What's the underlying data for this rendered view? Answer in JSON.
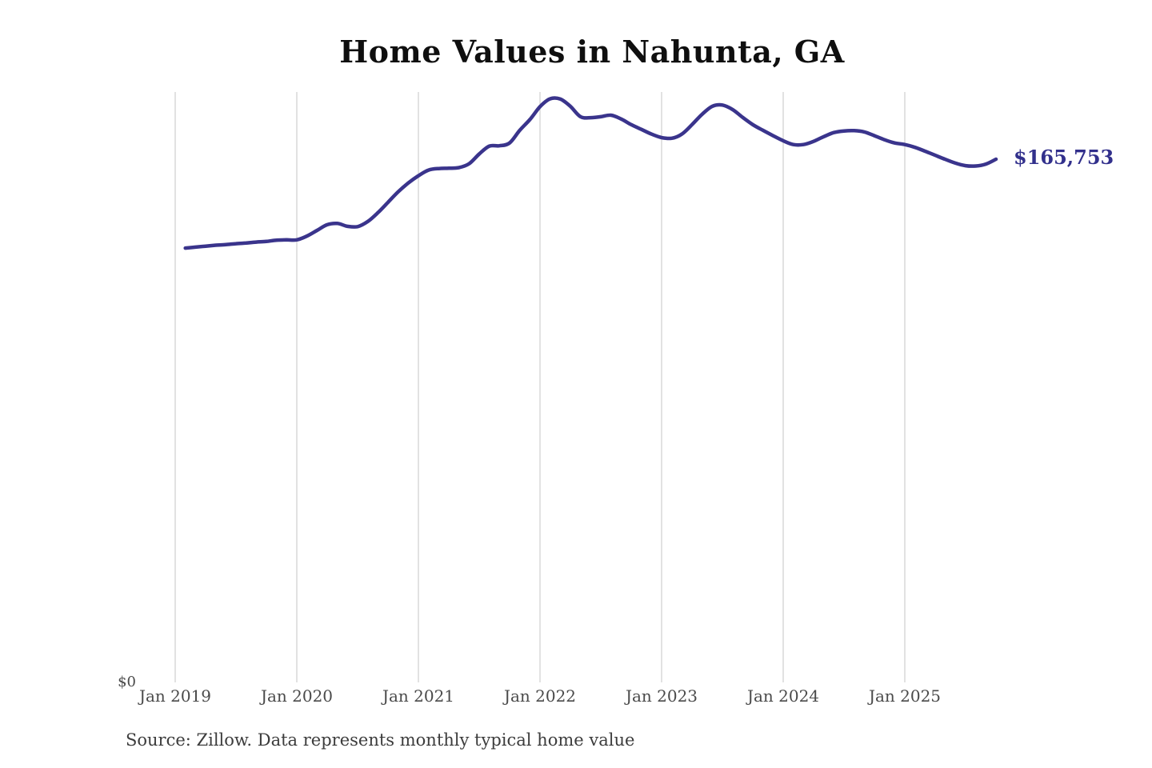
{
  "title": "Home Values in Nahunta, GA",
  "y_axis": {
    "zero_label": "$0"
  },
  "x_axis": {
    "ticks": [
      "Jan 2019",
      "Jan 2020",
      "Jan 2021",
      "Jan 2022",
      "Jan 2023",
      "Jan 2024",
      "Jan 2025"
    ]
  },
  "end_label": "$165,753",
  "source_note": "Source: Zillow. Data represents monthly typical home value",
  "colors": {
    "line": "#3a348c",
    "end_label": "#32308c",
    "grid": "#c6c6c6",
    "axis_text": "#4a4a4a",
    "title_text": "#0f0f0f",
    "source_text": "#3c3c3c",
    "background": "#ffffff"
  },
  "chart_data": {
    "type": "line",
    "title": "Home Values in Nahunta, GA",
    "series_name": "Monthly typical home value",
    "unit": "USD",
    "frequency": "monthly",
    "xlabel": "",
    "ylabel": "",
    "ylim": [
      0,
      200000
    ],
    "grid": "vertical-yearly",
    "legend": "none",
    "final_value": 165753,
    "x": [
      "2019-01",
      "2019-02",
      "2019-03",
      "2019-04",
      "2019-05",
      "2019-06",
      "2019-07",
      "2019-08",
      "2019-09",
      "2019-10",
      "2019-11",
      "2019-12",
      "2020-01",
      "2020-02",
      "2020-03",
      "2020-04",
      "2020-05",
      "2020-06",
      "2020-07",
      "2020-08",
      "2020-09",
      "2020-10",
      "2020-11",
      "2020-12",
      "2021-01",
      "2021-02",
      "2021-03",
      "2021-04",
      "2021-05",
      "2021-06",
      "2021-07",
      "2021-08",
      "2021-09",
      "2021-10",
      "2021-11",
      "2021-12",
      "2022-01",
      "2022-02",
      "2022-03",
      "2022-04",
      "2022-05",
      "2022-06",
      "2022-07",
      "2022-08",
      "2022-09",
      "2022-10",
      "2022-11",
      "2022-12",
      "2023-01",
      "2023-02",
      "2023-03",
      "2023-04",
      "2023-05",
      "2023-06",
      "2023-07",
      "2023-08",
      "2023-09",
      "2023-10",
      "2023-11",
      "2023-12",
      "2024-01",
      "2024-02",
      "2024-03",
      "2024-04",
      "2024-05",
      "2024-06",
      "2024-07",
      "2024-08",
      "2024-09",
      "2024-10",
      "2024-11",
      "2024-12",
      "2025-01",
      "2025-02",
      "2025-03",
      "2025-04",
      "2025-05",
      "2025-06",
      "2025-07",
      "2025-08",
      "2025-09"
    ],
    "values": [
      137600,
      137900,
      138200,
      138500,
      138700,
      139000,
      139200,
      139500,
      139700,
      140100,
      140200,
      140200,
      141400,
      143200,
      145000,
      145400,
      144500,
      144400,
      146000,
      148800,
      152100,
      155400,
      158200,
      160500,
      162300,
      162800,
      162900,
      163100,
      164300,
      167400,
      169900,
      170000,
      170900,
      174900,
      178300,
      182400,
      184900,
      184800,
      182500,
      179200,
      178900,
      179200,
      179700,
      178500,
      176700,
      175200,
      173700,
      172600,
      172400,
      173700,
      176700,
      180000,
      182500,
      182900,
      181500,
      179000,
      176700,
      174900,
      173200,
      171600,
      170400,
      170400,
      171400,
      172900,
      174200,
      174700,
      174800,
      174400,
      173200,
      171900,
      170900,
      170400,
      169500,
      168300,
      167000,
      165700,
      164500,
      163700,
      163600,
      164200,
      165753
    ]
  }
}
